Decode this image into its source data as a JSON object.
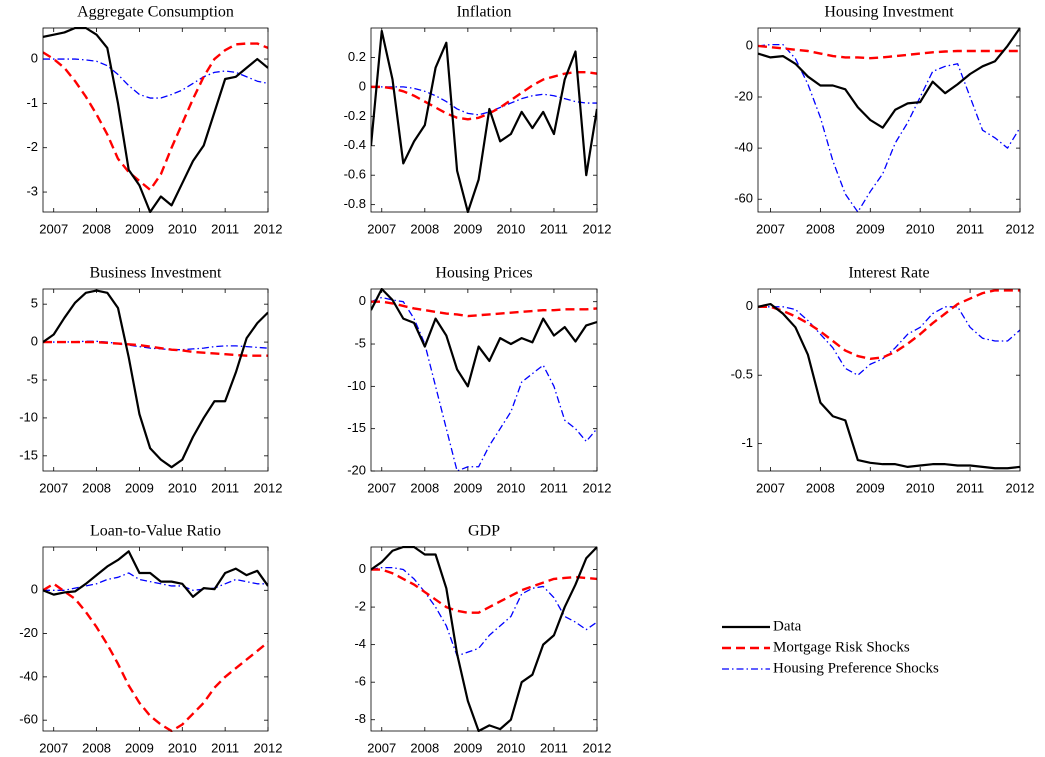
{
  "x": [
    2006.75,
    2007,
    2007.25,
    2007.5,
    2007.75,
    2008,
    2008.25,
    2008.5,
    2008.75,
    2009,
    2009.25,
    2009.5,
    2009.75,
    2010,
    2010.25,
    2010.5,
    2010.75,
    2011,
    2011.25,
    2011.5,
    2011.75,
    2012
  ],
  "xlim": [
    2006.75,
    2012
  ],
  "xticks": [
    2007,
    2008,
    2009,
    2010,
    2011,
    2012
  ],
  "legend": [
    {
      "name": "Data",
      "color": "#000000",
      "dash": "solid"
    },
    {
      "name": "Mortgage Risk Shocks",
      "color": "#ff0000",
      "dash": "dashed"
    },
    {
      "name": "Housing Preference Shocks",
      "color": "#0000ff",
      "dash": "dashdot"
    }
  ],
  "chart_data": [
    {
      "type": "line",
      "title": "Aggregate Consumption",
      "ylim": [
        -3.45,
        0.7
      ],
      "yticks": [
        0,
        -1,
        -2,
        -3
      ],
      "series": [
        {
          "values": [
            0.5,
            0.55,
            0.6,
            0.7,
            0.7,
            0.55,
            0.25,
            -1.0,
            -2.5,
            -2.85,
            -3.45,
            -3.1,
            -3.3,
            -2.8,
            -2.3,
            -1.95,
            -1.2,
            -0.45,
            -0.4,
            -0.2,
            0.0,
            -0.2
          ]
        },
        {
          "values": [
            0.15,
            0.0,
            -0.2,
            -0.5,
            -0.85,
            -1.25,
            -1.7,
            -2.25,
            -2.55,
            -2.75,
            -2.95,
            -2.6,
            -2.0,
            -1.45,
            -0.9,
            -0.4,
            0.0,
            0.2,
            0.33,
            0.35,
            0.35,
            0.25
          ]
        },
        {
          "values": [
            0,
            0,
            0,
            0,
            -0.02,
            -0.05,
            -0.15,
            -0.35,
            -0.6,
            -0.8,
            -0.88,
            -0.88,
            -0.8,
            -0.7,
            -0.55,
            -0.4,
            -0.3,
            -0.27,
            -0.3,
            -0.4,
            -0.5,
            -0.55
          ]
        }
      ]
    },
    {
      "type": "line",
      "title": "Inflation",
      "ylim": [
        -0.85,
        0.4
      ],
      "yticks": [
        0.2,
        0,
        -0.2,
        -0.4,
        -0.6,
        -0.8
      ],
      "series": [
        {
          "values": [
            -0.4,
            0.38,
            0.05,
            -0.52,
            -0.37,
            -0.26,
            0.13,
            0.3,
            -0.57,
            -0.85,
            -0.63,
            -0.15,
            -0.37,
            -0.32,
            -0.17,
            -0.28,
            -0.17,
            -0.32,
            0.05,
            0.24,
            -0.6,
            -0.15
          ]
        },
        {
          "values": [
            0,
            0,
            -0.01,
            -0.03,
            -0.06,
            -0.1,
            -0.14,
            -0.18,
            -0.21,
            -0.22,
            -0.21,
            -0.18,
            -0.14,
            -0.09,
            -0.04,
            0.01,
            0.05,
            0.07,
            0.09,
            0.1,
            0.1,
            0.09
          ]
        },
        {
          "values": [
            0,
            0,
            0,
            0,
            -0.01,
            -0.03,
            -0.06,
            -0.1,
            -0.15,
            -0.18,
            -0.19,
            -0.17,
            -0.14,
            -0.11,
            -0.08,
            -0.06,
            -0.05,
            -0.06,
            -0.08,
            -0.1,
            -0.11,
            -0.11
          ]
        }
      ]
    },
    {
      "type": "line",
      "title": "Housing Investment",
      "ylim": [
        -65,
        7
      ],
      "yticks": [
        0,
        -20,
        -40,
        -60
      ],
      "series": [
        {
          "values": [
            -3,
            -4.5,
            -4,
            -7,
            -12,
            -15.5,
            -15.5,
            -17,
            -24,
            -29,
            -32,
            -25,
            -22.5,
            -22,
            -14,
            -18.5,
            -15,
            -11,
            -8,
            -6,
            0,
            7
          ]
        },
        {
          "values": [
            0,
            -0.5,
            -1,
            -1.5,
            -2,
            -3,
            -4,
            -4.5,
            -4.5,
            -4.8,
            -4.5,
            -4,
            -3.5,
            -3,
            -2.5,
            -2.2,
            -2,
            -2,
            -2,
            -2,
            -2,
            -2
          ]
        },
        {
          "values": [
            0,
            0.5,
            0.5,
            -5,
            -15,
            -28,
            -45,
            -58,
            -65,
            -57,
            -50,
            -38,
            -30,
            -20,
            -10,
            -8,
            -7,
            -20,
            -33,
            -36,
            -40,
            -32
          ]
        }
      ]
    },
    {
      "type": "line",
      "title": "Business Investment",
      "ylim": [
        -17,
        7
      ],
      "yticks": [
        5,
        0,
        -5,
        -10,
        -15
      ],
      "series": [
        {
          "values": [
            0,
            1,
            3.2,
            5.2,
            6.5,
            6.8,
            6.5,
            4.5,
            -2,
            -9.5,
            -14,
            -15.5,
            -16.5,
            -15.5,
            -12.5,
            -10,
            -7.8,
            -7.8,
            -4,
            0.5,
            2.5,
            3.9
          ]
        },
        {
          "values": [
            0,
            0,
            0,
            0,
            0,
            0,
            -0.1,
            -0.2,
            -0.3,
            -0.4,
            -0.6,
            -0.8,
            -1,
            -1.1,
            -1.3,
            -1.4,
            -1.5,
            -1.6,
            -1.7,
            -1.8,
            -1.8,
            -1.8
          ]
        },
        {
          "values": [
            0,
            0,
            0,
            0.05,
            0.1,
            0.1,
            0,
            -0.2,
            -0.4,
            -0.6,
            -0.8,
            -0.9,
            -1,
            -1,
            -0.9,
            -0.8,
            -0.6,
            -0.5,
            -0.5,
            -0.6,
            -0.7,
            -0.8
          ]
        }
      ]
    },
    {
      "type": "line",
      "title": "Housing Prices",
      "ylim": [
        -20,
        1.5
      ],
      "yticks": [
        0,
        -5,
        -10,
        -15,
        -20
      ],
      "series": [
        {
          "values": [
            -1,
            1.5,
            0.2,
            -2,
            -2.5,
            -5.3,
            -2,
            -4,
            -8,
            -10,
            -5.3,
            -7,
            -4.3,
            -5,
            -4.3,
            -4.8,
            -2,
            -4,
            -3,
            -4.7,
            -2.8,
            -2.4
          ]
        },
        {
          "values": [
            0,
            0,
            -0.2,
            -0.5,
            -0.8,
            -1,
            -1.2,
            -1.4,
            -1.5,
            -1.7,
            -1.6,
            -1.5,
            -1.4,
            -1.3,
            -1.2,
            -1.1,
            -1,
            -1,
            -0.9,
            -0.9,
            -0.9,
            -0.8
          ]
        },
        {
          "values": [
            0,
            0.5,
            0.2,
            0,
            -2,
            -5,
            -10,
            -15,
            -20,
            -19.5,
            -19.5,
            -17,
            -15,
            -13,
            -9.5,
            -8.5,
            -7.5,
            -10,
            -14,
            -15,
            -16.5,
            -15
          ]
        }
      ]
    },
    {
      "type": "line",
      "title": "Interest Rate",
      "ylim": [
        -1.2,
        0.13
      ],
      "yticks": [
        0,
        -0.5,
        -1
      ],
      "series": [
        {
          "values": [
            0,
            0.02,
            -0.05,
            -0.15,
            -0.35,
            -0.7,
            -0.8,
            -0.83,
            -1.12,
            -1.14,
            -1.15,
            -1.15,
            -1.17,
            -1.16,
            -1.15,
            -1.15,
            -1.16,
            -1.16,
            -1.17,
            -1.18,
            -1.18,
            -1.17
          ]
        },
        {
          "values": [
            0,
            0,
            -0.03,
            -0.07,
            -0.12,
            -0.18,
            -0.25,
            -0.32,
            -0.36,
            -0.38,
            -0.37,
            -0.33,
            -0.27,
            -0.2,
            -0.12,
            -0.05,
            0.02,
            0.06,
            0.1,
            0.12,
            0.12,
            0.12
          ]
        },
        {
          "values": [
            0,
            0,
            0,
            -0.02,
            -0.1,
            -0.2,
            -0.3,
            -0.45,
            -0.5,
            -0.42,
            -0.38,
            -0.3,
            -0.2,
            -0.15,
            -0.05,
            0,
            0,
            -0.15,
            -0.23,
            -0.25,
            -0.25,
            -0.17
          ]
        }
      ]
    },
    {
      "type": "line",
      "title": "Loan-to-Value Ratio",
      "ylim": [
        -65,
        20
      ],
      "yticks": [
        0,
        -20,
        -40,
        -60
      ],
      "series": [
        {
          "values": [
            0,
            -2,
            -1,
            -0.5,
            3,
            7,
            11,
            14,
            18,
            8,
            8,
            4,
            4,
            3,
            -3,
            1,
            0.5,
            8,
            10,
            7,
            9,
            2
          ]
        },
        {
          "values": [
            0,
            3,
            -0.5,
            -4,
            -10,
            -17,
            -25,
            -34,
            -44,
            -52,
            -58,
            -62,
            -65,
            -62,
            -57,
            -52,
            -45,
            -40,
            -36,
            -32,
            -28,
            -24
          ]
        },
        {
          "values": [
            0,
            0,
            0,
            1,
            2,
            3,
            5,
            6,
            8,
            5,
            4,
            3,
            2,
            2,
            0,
            0.5,
            1,
            3,
            5,
            4,
            3,
            3
          ]
        }
      ]
    },
    {
      "type": "line",
      "title": "GDP",
      "ylim": [
        -8.6,
        1.2
      ],
      "yticks": [
        0,
        -2,
        -4,
        -6,
        -8
      ],
      "series": [
        {
          "values": [
            0,
            0.4,
            1,
            1.2,
            1.2,
            0.8,
            0.8,
            -1,
            -4.5,
            -7,
            -8.6,
            -8.3,
            -8.5,
            -8,
            -6,
            -5.6,
            -4,
            -3.5,
            -2,
            -0.8,
            0.6,
            1.2
          ]
        },
        {
          "values": [
            0,
            0,
            -0.2,
            -0.5,
            -0.8,
            -1.2,
            -1.6,
            -2,
            -2.2,
            -2.3,
            -2.3,
            -2,
            -1.7,
            -1.4,
            -1.1,
            -0.9,
            -0.7,
            -0.5,
            -0.45,
            -0.4,
            -0.45,
            -0.5
          ]
        },
        {
          "values": [
            0,
            0.1,
            0.1,
            0,
            -0.5,
            -1.2,
            -2,
            -3,
            -4.6,
            -4.4,
            -4.2,
            -3.5,
            -3,
            -2.5,
            -1.3,
            -1,
            -0.9,
            -1.5,
            -2.5,
            -2.8,
            -3.2,
            -2.8
          ]
        }
      ]
    }
  ]
}
